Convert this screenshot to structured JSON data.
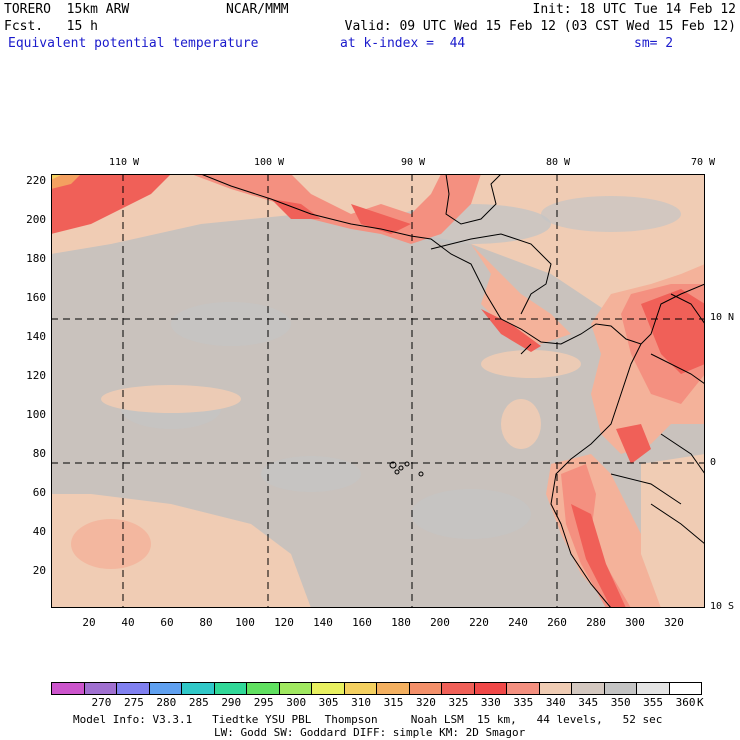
{
  "header": {
    "model_name": "TORERO  15km ARW",
    "center": "NCAR/MMM",
    "init": "Init: 18 UTC Tue 14 Feb 12",
    "forecast": "Fcst.   15 h",
    "valid": "Valid: 09 UTC Wed 15 Feb 12 (03 CST Wed 15 Feb 12)",
    "field": "Equivalent potential temperature",
    "level": "at k-index =  44",
    "smoothing": "sm= 2"
  },
  "map": {
    "y_ticks": [
      "220",
      "200",
      "180",
      "160",
      "140",
      "120",
      "100",
      "80",
      "60",
      "40",
      "20"
    ],
    "x_ticks": [
      "20",
      "40",
      "60",
      "80",
      "100",
      "120",
      "140",
      "160",
      "180",
      "200",
      "220",
      "240",
      "260",
      "280",
      "300",
      "320"
    ],
    "lon_labels": [
      "110 W",
      "100 W",
      "90 W",
      "80 W",
      "70 W"
    ],
    "lat_labels": [
      "10 N",
      "0",
      "10 S"
    ],
    "colors": {
      "ocean": "#c9c2bd",
      "grey_cool": "#c4c4c4",
      "peach_light": "#f0ccb4",
      "peach": "#f4b29a",
      "salmon": "#f49080",
      "red": "#f06058",
      "orange": "#f4a060",
      "yellow": "#f4d060"
    }
  },
  "colorbar": {
    "colors": [
      "#cc55cc",
      "#a070d0",
      "#8080f0",
      "#5fa0f0",
      "#30c8c8",
      "#30d898",
      "#60e060",
      "#a0e860",
      "#e8f060",
      "#f4d060",
      "#f4b060",
      "#f4906a",
      "#f06058",
      "#f04848",
      "#f49080",
      "#f0ccb4",
      "#d4c8c0",
      "#c4c4c4",
      "#e4e4e4",
      "#ffffff"
    ],
    "labels": [
      "270",
      "275",
      "280",
      "285",
      "290",
      "295",
      "300",
      "305",
      "310",
      "315",
      "320",
      "325",
      "330",
      "335",
      "340",
      "345",
      "350",
      "355",
      "360"
    ],
    "unit": "K"
  },
  "footer": {
    "line1": "Model Info: V3.3.1   Tiedtke YSU PBL  Thompson     Noah LSM  15 km,   44 levels,   52 sec",
    "line2": "LW: Godd SW: Goddard DIFF: simple KM: 2D Smagor"
  }
}
